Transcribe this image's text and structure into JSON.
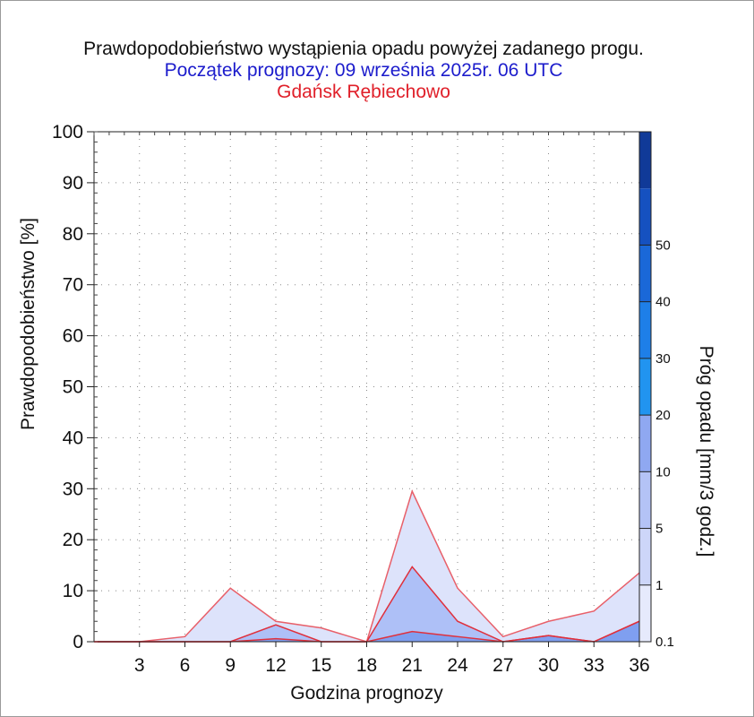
{
  "chart_data": {
    "type": "area",
    "title": "Prawdopodobieństwo wystąpienia opadu powyżej zadanego progu.",
    "subtitle": "Początek prognozy: 09 września 2025r. 06 UTC",
    "location": "Gdańsk Rębiechowo",
    "xlabel": "Godzina prognozy",
    "ylabel": "Prawdopodobieństwo [%]",
    "colorbar_label": "Próg opadu [mm/3 godz.]",
    "x": [
      0,
      3,
      6,
      9,
      12,
      15,
      18,
      21,
      24,
      27,
      30,
      33,
      36
    ],
    "x_ticks": [
      3,
      6,
      9,
      12,
      15,
      18,
      21,
      24,
      27,
      30,
      33,
      36
    ],
    "xlim": [
      0,
      36
    ],
    "y_ticks": [
      0,
      10,
      20,
      30,
      40,
      50,
      60,
      70,
      80,
      90,
      100
    ],
    "ylim": [
      0,
      100
    ],
    "grid": true,
    "series": [
      {
        "name": "0.1",
        "color": "#dde3fb",
        "values": [
          0,
          0,
          1,
          10.5,
          4,
          2.7,
          0,
          29.5,
          10.5,
          1,
          4,
          6,
          13.5
        ]
      },
      {
        "name": "1",
        "color": "#aec0f7",
        "values": [
          0,
          0,
          0,
          0,
          3.3,
          0,
          0,
          14.7,
          4,
          0,
          1.2,
          0,
          4
        ]
      },
      {
        "name": "5",
        "color": "#7f9ff0",
        "values": [
          0,
          0,
          0,
          0,
          0.6,
          0,
          0,
          2,
          1,
          0,
          1.2,
          0,
          4
        ]
      }
    ],
    "colorbar": {
      "labels": [
        "0.1",
        "1",
        "5",
        "10",
        "20",
        "30",
        "40",
        "50"
      ],
      "colors": [
        "#e6eafc",
        "#cdd6f9",
        "#b4c3f6",
        "#8fa8f1",
        "#2194f0",
        "#1e7fe8",
        "#1a68d8",
        "#1551c0",
        "#103a98"
      ]
    }
  }
}
